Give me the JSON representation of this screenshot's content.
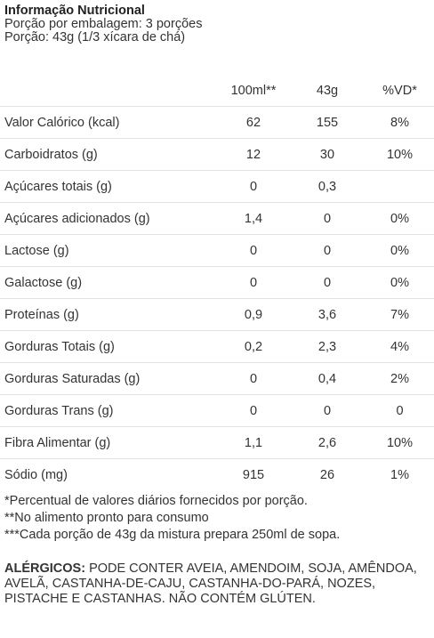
{
  "header": {
    "title": "Informação Nutricional",
    "servings": "Porção por embalagem: 3 porções",
    "portion": "Porção: 43g (1/3 xícara de chá)"
  },
  "table": {
    "columns": [
      "100ml**",
      "43g",
      "%VD*"
    ],
    "rows": [
      [
        "Valor Calórico (kcal)",
        "62",
        "155",
        "8%"
      ],
      [
        "Carboidratos (g)",
        "12",
        "30",
        "10%"
      ],
      [
        "Açúcares totais (g)",
        "0",
        "0,3",
        ""
      ],
      [
        "Açúcares adicionados (g)",
        "1,4",
        "0",
        "0%"
      ],
      [
        "Lactose (g)",
        "0",
        "0",
        "0%"
      ],
      [
        "Galactose (g)",
        "0",
        "0",
        "0%"
      ],
      [
        "Proteínas (g)",
        "0,9",
        "3,6",
        "7%"
      ],
      [
        "Gorduras Totais (g)",
        "0,2",
        "2,3",
        "4%"
      ],
      [
        "Gorduras Saturadas (g)",
        "0",
        "0,4",
        "2%"
      ],
      [
        "Gorduras Trans (g)",
        "0",
        "0",
        "0"
      ],
      [
        "Fibra Alimentar (g)",
        "1,1",
        "2,6",
        "10%"
      ],
      [
        "Sódio (mg)",
        "915",
        "26",
        "1%"
      ]
    ]
  },
  "footnotes": [
    "*Percentual de valores diários fornecidos por porção.",
    "**No alimento pronto para consumo",
    "***Cada porção de 43g da mistura prepara 250ml de sopa."
  ],
  "allergens": {
    "label": "ALÉRGICOS:",
    "text": "PODE CONTER AVEIA, AMENDOIM, SOJA, AMÊNDOA, AVELÃ, CASTANHA-DE-CAJU, CASTANHA-DO-PARÁ, NOZES, PISTACHE E CASTANHAS. NÃO CONTÉM GLÚTEN."
  }
}
